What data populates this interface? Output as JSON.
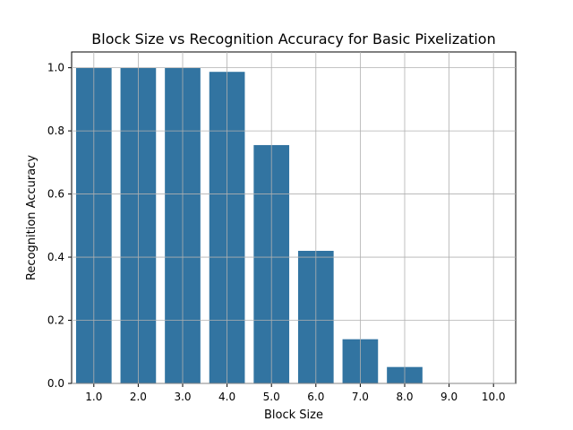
{
  "chart_data": {
    "type": "bar",
    "title": "Block Size vs Recognition Accuracy for Basic Pixelization",
    "xlabel": "Block Size",
    "ylabel": "Recognition Accuracy",
    "categories": [
      "1.0",
      "2.0",
      "3.0",
      "4.0",
      "5.0",
      "6.0",
      "7.0",
      "8.0",
      "9.0",
      "10.0"
    ],
    "values": [
      1.0,
      1.0,
      1.0,
      0.987,
      0.755,
      0.42,
      0.14,
      0.052,
      0.0,
      0.0
    ],
    "ylim": [
      0,
      1.05
    ],
    "yticks": [
      0.0,
      0.2,
      0.4,
      0.6,
      0.8,
      1.0
    ],
    "ytick_labels": [
      "0.0",
      "0.2",
      "0.4",
      "0.6",
      "0.8",
      "1.0"
    ],
    "grid": true,
    "bar_color": "#3274a1",
    "grid_color": "#b0b0b0"
  }
}
